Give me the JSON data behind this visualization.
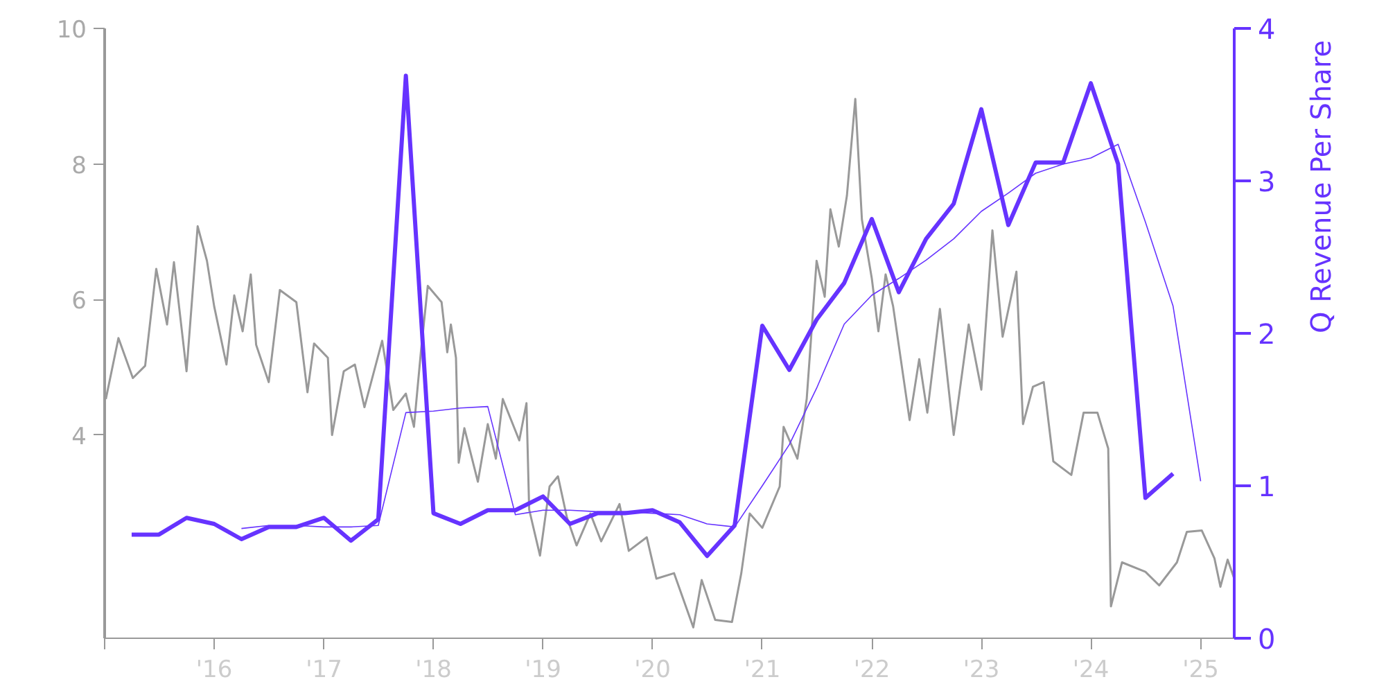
{
  "chart_data": {
    "type": "line",
    "y2label": "Q Revenue Per Share",
    "xlim": [
      "2015-01-01",
      "2025-04-23"
    ],
    "xticks": [
      {
        "value": "2015-01-01",
        "label": null
      },
      {
        "value": "2016-01-01",
        "label": "'16"
      },
      {
        "value": "2017-01-01",
        "label": "'17"
      },
      {
        "value": "2018-01-01",
        "label": "'18"
      },
      {
        "value": "2019-01-01",
        "label": "'19"
      },
      {
        "value": "2020-01-01",
        "label": "'20"
      },
      {
        "value": "2021-01-01",
        "label": "'21"
      },
      {
        "value": "2022-01-01",
        "label": "'22"
      },
      {
        "value": "2023-01-01",
        "label": "'23"
      },
      {
        "value": "2024-01-01",
        "label": "'24"
      },
      {
        "value": "2025-01-01",
        "label": "'25"
      }
    ],
    "ylim": [
      1,
      10
    ],
    "yticks": [
      4,
      6,
      8,
      10
    ],
    "y2lim": [
      0,
      4
    ],
    "y2ticks": [
      0,
      1,
      2,
      3,
      4
    ],
    "grid": false,
    "series": [
      {
        "color": "#999999",
        "x": [
          "2015-01-05",
          "2015-02-16",
          "2015-04-05",
          "2015-05-16",
          "2015-06-22",
          "2015-07-28",
          "2015-08-20",
          "2015-10-01",
          "2015-11-07",
          "2015-12-08",
          "2016-01-01",
          "2016-02-11",
          "2016-03-08",
          "2016-04-05",
          "2016-05-02",
          "2016-05-20",
          "2016-07-01",
          "2016-08-07",
          "2016-10-01",
          "2016-11-07",
          "2016-11-29",
          "2017-01-14",
          "2017-01-28",
          "2017-03-08",
          "2017-04-14",
          "2017-05-16",
          "2017-07-14",
          "2017-08-20",
          "2017-10-01",
          "2017-10-28",
          "2017-11-20",
          "2017-12-13",
          "2018-01-28",
          "2018-02-16",
          "2018-02-28",
          "2018-03-17",
          "2018-03-26",
          "2018-04-14",
          "2018-05-29",
          "2018-07-01",
          "2018-07-28",
          "2018-08-20",
          "2018-10-14",
          "2018-11-07",
          "2018-11-16",
          "2018-12-22",
          "2019-01-23",
          "2019-02-20",
          "2019-03-22",
          "2019-04-23",
          "2019-06-08",
          "2019-07-14",
          "2019-09-13",
          "2019-10-14",
          "2019-12-13",
          "2020-01-14",
          "2020-03-13",
          "2020-05-16",
          "2020-06-13",
          "2020-07-28",
          "2020-09-22",
          "2020-10-23",
          "2020-11-20",
          "2021-01-01",
          "2021-02-28",
          "2021-03-13",
          "2021-04-28",
          "2021-05-29",
          "2021-07-01",
          "2021-07-28",
          "2021-08-16",
          "2021-09-13",
          "2021-10-10",
          "2021-11-07",
          "2021-11-29",
          "2022-01-01",
          "2022-01-23",
          "2022-02-16",
          "2022-03-13",
          "2022-05-07",
          "2022-06-08",
          "2022-07-05",
          "2022-08-16",
          "2022-10-01",
          "2022-11-20",
          "2023-01-01",
          "2023-02-07",
          "2023-03-13",
          "2023-04-28",
          "2023-05-20",
          "2023-06-22",
          "2023-07-28",
          "2023-08-29",
          "2023-10-28",
          "2023-12-08",
          "2024-01-23",
          "2024-02-28",
          "2024-03-08",
          "2024-04-14",
          "2024-07-01",
          "2024-08-16",
          "2024-10-14",
          "2024-11-16",
          "2025-01-05",
          "2025-02-16",
          "2025-03-08",
          "2025-04-01",
          "2025-04-23"
        ],
        "values": [
          4.53,
          5.43,
          4.84,
          5.02,
          6.45,
          5.63,
          6.55,
          4.94,
          7.08,
          6.57,
          5.9,
          5.04,
          6.06,
          5.53,
          6.37,
          5.33,
          4.78,
          6.14,
          5.96,
          4.63,
          5.35,
          5.14,
          4.0,
          4.94,
          5.04,
          4.41,
          5.39,
          4.37,
          4.61,
          4.12,
          5.22,
          6.2,
          5.96,
          5.22,
          5.63,
          5.14,
          3.59,
          4.1,
          3.31,
          4.16,
          3.65,
          4.53,
          3.92,
          4.47,
          2.9,
          2.22,
          3.24,
          3.39,
          2.78,
          2.37,
          2.84,
          2.43,
          2.98,
          2.29,
          2.49,
          1.88,
          1.96,
          1.16,
          1.86,
          1.27,
          1.24,
          1.96,
          2.84,
          2.63,
          3.24,
          4.12,
          3.65,
          4.53,
          6.57,
          6.04,
          7.33,
          6.78,
          7.53,
          8.96,
          7.18,
          6.31,
          5.53,
          6.37,
          5.9,
          4.22,
          5.12,
          4.33,
          5.86,
          4.0,
          5.63,
          4.67,
          7.02,
          5.45,
          6.41,
          4.16,
          4.71,
          4.78,
          3.61,
          3.41,
          4.33,
          4.33,
          3.8,
          1.47,
          2.12,
          1.98,
          1.78,
          2.12,
          2.57,
          2.59,
          2.18,
          1.76,
          2.16,
          1.88
        ]
      },
      {
        "color": "#6633ff",
        "axis": "y2",
        "x": [
          "2015-04-01",
          "2015-07-01",
          "2015-10-01",
          "2016-01-01",
          "2016-04-01",
          "2016-07-01",
          "2016-10-01",
          "2017-01-01",
          "2017-04-01",
          "2017-07-01",
          "2017-10-01",
          "2018-01-01",
          "2018-04-01",
          "2018-07-01",
          "2018-10-01",
          "2019-01-01",
          "2019-04-01",
          "2019-07-01",
          "2019-10-01",
          "2020-01-01",
          "2020-04-01",
          "2020-07-01",
          "2020-10-01",
          "2021-01-01",
          "2021-04-01",
          "2021-07-01",
          "2021-10-01",
          "2022-01-01",
          "2022-04-01",
          "2022-07-01",
          "2022-10-01",
          "2023-01-01",
          "2023-04-01",
          "2023-07-01",
          "2023-10-01",
          "2024-01-01",
          "2024-04-01",
          "2024-07-01",
          "2024-10-01"
        ],
        "values": [
          0.68,
          0.68,
          0.79,
          0.75,
          0.65,
          0.73,
          0.73,
          0.79,
          0.64,
          0.78,
          3.69,
          0.82,
          0.75,
          0.84,
          0.84,
          0.93,
          0.75,
          0.82,
          0.82,
          0.84,
          0.76,
          0.54,
          0.74,
          2.05,
          1.76,
          2.09,
          2.33,
          2.75,
          2.27,
          2.62,
          2.85,
          3.47,
          2.71,
          3.12,
          3.12,
          3.64,
          3.11,
          0.92,
          1.08
        ]
      },
      {
        "color": "#6633ff",
        "axis": "y2",
        "x": [
          "2016-04-01",
          "2016-07-01",
          "2016-10-01",
          "2017-01-01",
          "2017-04-01",
          "2017-07-01",
          "2017-10-01",
          "2018-01-01",
          "2018-04-01",
          "2018-07-01",
          "2018-10-01",
          "2019-01-01",
          "2019-04-01",
          "2019-07-01",
          "2019-10-01",
          "2020-01-01",
          "2020-04-01",
          "2020-07-01",
          "2020-10-01",
          "2021-01-01",
          "2021-04-01",
          "2021-07-01",
          "2021-10-01",
          "2022-01-01",
          "2022-04-01",
          "2022-07-01",
          "2022-10-01",
          "2023-01-01",
          "2023-04-01",
          "2023-07-01",
          "2023-10-01",
          "2024-01-01",
          "2024-04-01",
          "2024-07-01",
          "2024-10-01",
          "2025-01-01"
        ],
        "values": [
          0.72,
          0.74,
          0.74,
          0.73,
          0.73,
          0.74,
          1.48,
          1.49,
          1.51,
          1.52,
          0.81,
          0.84,
          0.84,
          0.83,
          0.83,
          0.82,
          0.81,
          0.75,
          0.73,
          1.0,
          1.27,
          1.64,
          2.06,
          2.25,
          2.36,
          2.48,
          2.62,
          2.8,
          2.92,
          3.05,
          3.11,
          3.15,
          3.24,
          2.73,
          2.18,
          1.03
        ]
      }
    ]
  }
}
